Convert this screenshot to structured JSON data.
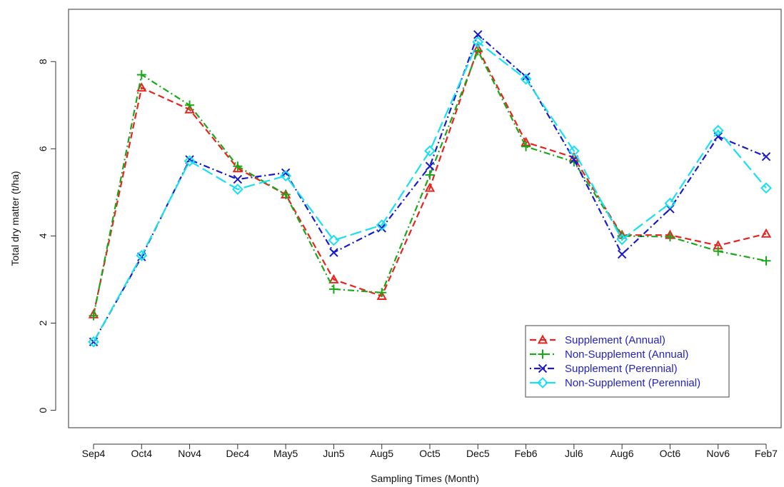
{
  "chart_data": {
    "type": "line",
    "title": "",
    "xlabel": "Sampling Times (Month)",
    "ylabel": "Total dry matter (t/ha)",
    "categories": [
      "Sep4",
      "Oct4",
      "Nov4",
      "Dec4",
      "May5",
      "Jun5",
      "Aug5",
      "Oct5",
      "Dec5",
      "Feb6",
      "Jul6",
      "Aug6",
      "Oct6",
      "Nov6",
      "Feb7"
    ],
    "ylim": [
      -0.4,
      9.2
    ],
    "yticks": [
      "0",
      "2",
      "4",
      "6",
      "8"
    ],
    "grid": false,
    "legend_position": "bottom-right",
    "series": [
      {
        "name": "Supplement (Annual)",
        "color": "#e8231f",
        "dash": "dashed",
        "marker": "triangle",
        "values": [
          2.2,
          7.4,
          6.9,
          5.55,
          4.95,
          3.0,
          2.62,
          5.1,
          8.3,
          6.15,
          5.8,
          4.02,
          4.02,
          3.78,
          4.05
        ]
      },
      {
        "name": "Non-Supplement (Annual)",
        "color": "#1aa81a",
        "dash": "dashdot",
        "marker": "plus",
        "values": [
          2.17,
          7.7,
          7.0,
          5.6,
          4.95,
          2.78,
          2.7,
          5.4,
          8.25,
          6.05,
          5.7,
          4.0,
          3.98,
          3.65,
          3.43
        ]
      },
      {
        "name": "Supplement (Perennial)",
        "color": "#1a1acc",
        "dash": "dotdash",
        "marker": "cross",
        "values": [
          1.57,
          3.52,
          5.75,
          5.3,
          5.45,
          3.62,
          4.18,
          5.6,
          8.62,
          7.65,
          5.75,
          3.58,
          4.62,
          6.28,
          5.82
        ]
      },
      {
        "name": "Non-Supplement (Perennial)",
        "color": "#19e0f0",
        "dash": "longdash",
        "marker": "diamond",
        "values": [
          1.57,
          3.55,
          5.72,
          5.07,
          5.38,
          3.9,
          4.25,
          5.95,
          8.45,
          7.6,
          5.95,
          3.92,
          4.75,
          6.42,
          5.1
        ]
      }
    ]
  }
}
